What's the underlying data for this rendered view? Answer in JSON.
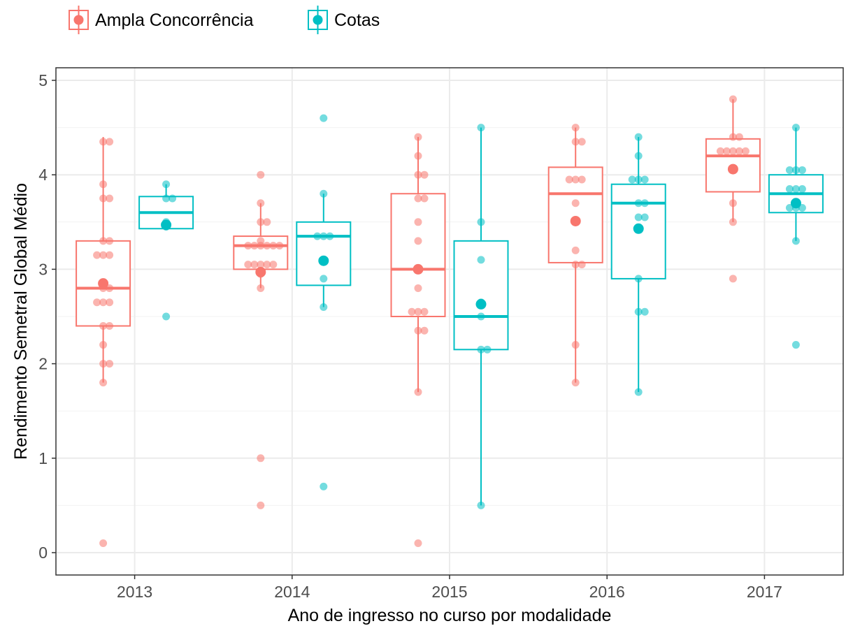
{
  "chart_data": {
    "type": "box",
    "xlabel": "Ano de ingresso no curso por modalidade",
    "ylabel": "Rendimento Semetral Global Médio",
    "categories": [
      "2013",
      "2014",
      "2015",
      "2016",
      "2017"
    ],
    "ylim": [
      -0.2,
      5.1
    ],
    "yticks": [
      "0",
      "1",
      "2",
      "3",
      "4",
      "5"
    ],
    "grid": true,
    "legend_position": "top-left",
    "colors": {
      "Ampla Concorrência": "#F8766D",
      "Cotas": "#00BFC4"
    },
    "series": [
      {
        "name": "Ampla Concorrência",
        "boxes": [
          {
            "year": "2013",
            "q1": 2.4,
            "median": 2.8,
            "q3": 3.3,
            "whisker_low": 1.8,
            "whisker_high": 4.4,
            "mean": 2.85,
            "points": [
              4.35,
              4.35,
              3.9,
              3.75,
              3.75,
              3.3,
              3.3,
              3.15,
              3.15,
              3.15,
              2.85,
              2.8,
              2.8,
              2.65,
              2.65,
              2.65,
              2.4,
              2.4,
              2.2,
              2.0,
              2.0,
              1.8,
              0.1
            ]
          },
          {
            "year": "2014",
            "q1": 3.0,
            "median": 3.25,
            "q3": 3.35,
            "whisker_low": 2.8,
            "whisker_high": 3.7,
            "mean": 2.97,
            "points": [
              4.0,
              3.7,
              3.5,
              3.5,
              3.3,
              3.25,
              3.25,
              3.25,
              3.25,
              3.25,
              3.25,
              3.05,
              3.05,
              3.05,
              3.05,
              3.05,
              2.95,
              2.8,
              1.0,
              0.5
            ]
          },
          {
            "year": "2015",
            "q1": 2.5,
            "median": 3.0,
            "q3": 3.8,
            "whisker_low": 1.7,
            "whisker_high": 4.4,
            "mean": 3.0,
            "points": [
              4.4,
              4.2,
              4.0,
              4.0,
              3.75,
              3.75,
              3.5,
              3.3,
              3.0,
              2.8,
              2.55,
              2.55,
              2.55,
              2.35,
              2.35,
              1.7,
              0.1
            ]
          },
          {
            "year": "2016",
            "q1": 3.07,
            "median": 3.8,
            "q3": 4.08,
            "whisker_low": 1.8,
            "whisker_high": 4.5,
            "mean": 3.51,
            "points": [
              4.5,
              4.35,
              4.35,
              3.95,
              3.95,
              3.95,
              3.7,
              3.5,
              3.2,
              3.05,
              3.05,
              2.2,
              1.8
            ]
          },
          {
            "year": "2017",
            "q1": 3.82,
            "median": 4.2,
            "q3": 4.38,
            "whisker_low": 3.5,
            "whisker_high": 4.8,
            "mean": 4.06,
            "points": [
              4.8,
              4.4,
              4.4,
              4.25,
              4.25,
              4.25,
              4.25,
              4.25,
              4.05,
              3.7,
              3.5,
              2.9
            ]
          }
        ]
      },
      {
        "name": "Cotas",
        "boxes": [
          {
            "year": "2013",
            "q1": 3.43,
            "median": 3.6,
            "q3": 3.77,
            "whisker_low": 3.43,
            "whisker_high": 3.9,
            "mean": 3.47,
            "points": [
              3.9,
              3.75,
              3.75,
              3.5,
              3.45,
              2.5
            ]
          },
          {
            "year": "2014",
            "q1": 2.83,
            "median": 3.35,
            "q3": 3.5,
            "whisker_low": 2.6,
            "whisker_high": 3.8,
            "mean": 3.09,
            "points": [
              4.6,
              3.8,
              3.35,
              3.35,
              3.35,
              3.1,
              2.9,
              2.6,
              0.7
            ]
          },
          {
            "year": "2015",
            "q1": 2.15,
            "median": 2.5,
            "q3": 3.3,
            "whisker_low": 0.5,
            "whisker_high": 4.5,
            "mean": 2.63,
            "points": [
              4.5,
              3.5,
              3.1,
              2.65,
              2.5,
              2.15,
              2.15,
              0.5
            ]
          },
          {
            "year": "2016",
            "q1": 2.9,
            "median": 3.7,
            "q3": 3.9,
            "whisker_low": 1.7,
            "whisker_high": 4.4,
            "mean": 3.43,
            "points": [
              4.4,
              4.2,
              3.95,
              3.95,
              3.95,
              3.7,
              3.7,
              3.55,
              3.55,
              2.9,
              2.55,
              2.55,
              1.7
            ]
          },
          {
            "year": "2017",
            "q1": 3.6,
            "median": 3.8,
            "q3": 4.0,
            "whisker_low": 3.3,
            "whisker_high": 4.5,
            "mean": 3.7,
            "points": [
              4.5,
              4.05,
              4.05,
              4.05,
              3.85,
              3.85,
              3.85,
              3.7,
              3.65,
              3.65,
              3.65,
              3.3,
              2.2
            ]
          }
        ]
      }
    ]
  }
}
